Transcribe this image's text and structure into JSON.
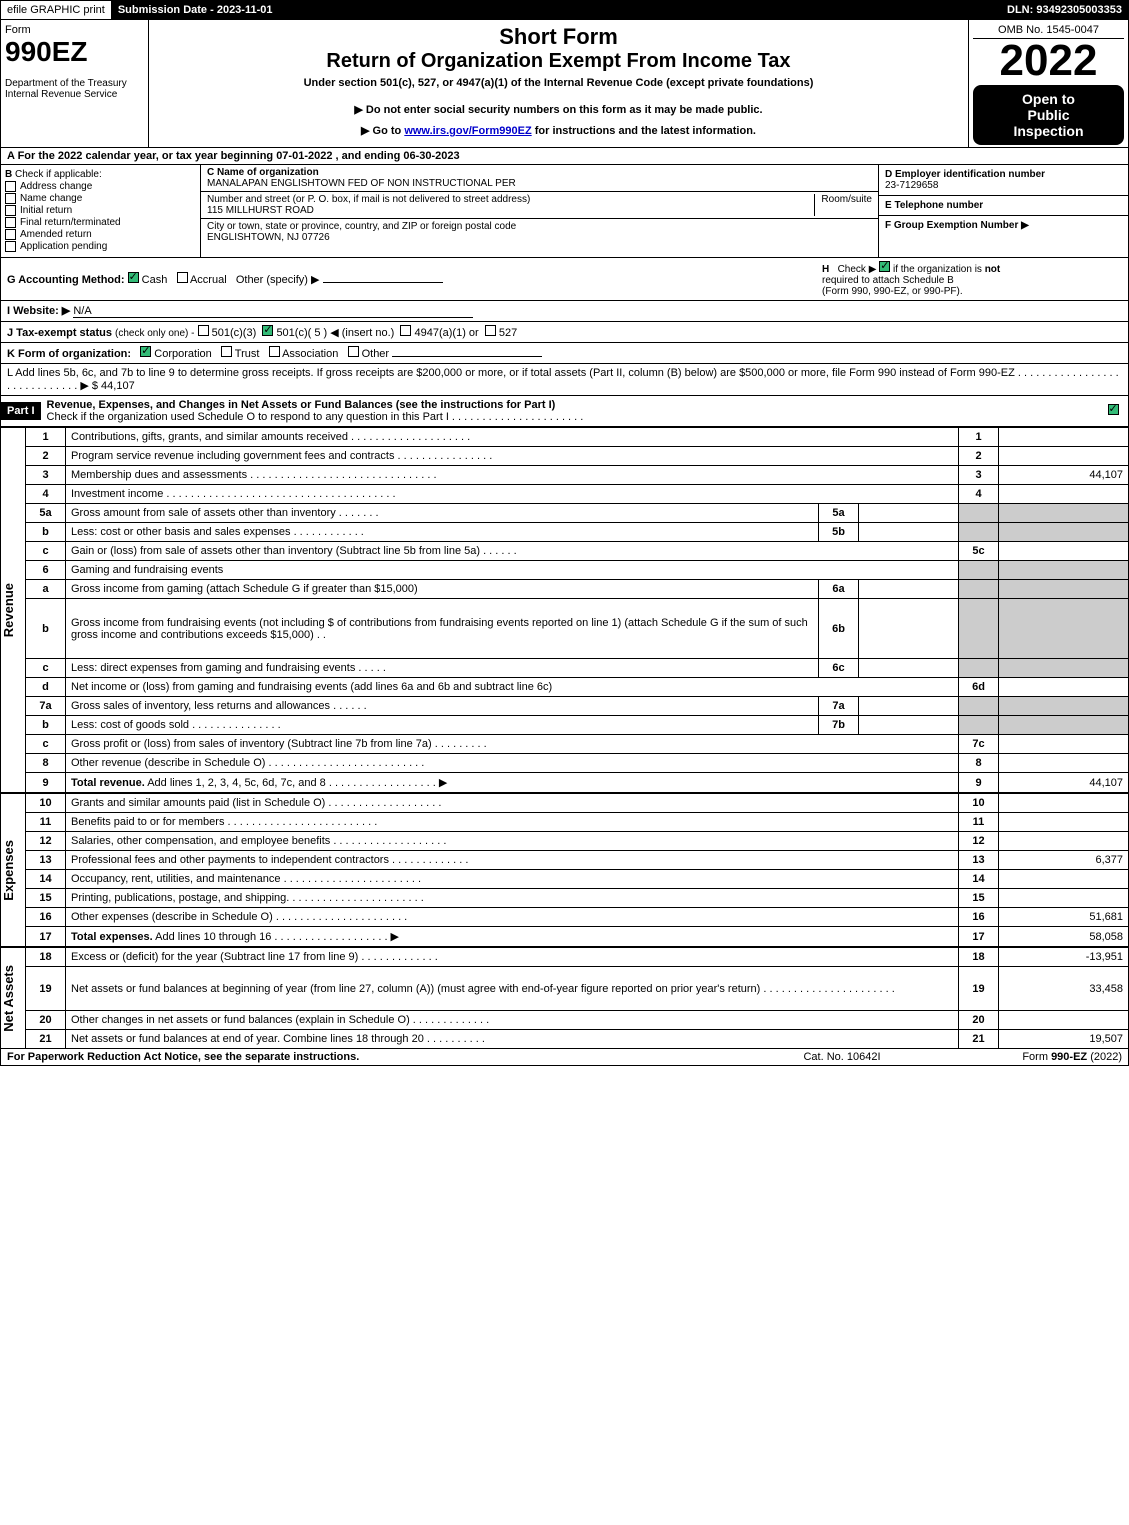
{
  "topbar": {
    "efile": "efile GRAPHIC print",
    "submission_label": "Submission Date - 2023-11-01",
    "dln": "DLN: 93492305003353"
  },
  "header": {
    "form_label": "Form",
    "form_no": "990EZ",
    "dept": "Department of the Treasury",
    "irs": "Internal Revenue Service",
    "short_form": "Short Form",
    "title": "Return of Organization Exempt From Income Tax",
    "subtitle": "Under section 501(c), 527, or 4947(a)(1) of the Internal Revenue Code (except private foundations)",
    "note1": "▶ Do not enter social security numbers on this form as it may be made public.",
    "note2_pre": "▶ Go to ",
    "note2_link": "www.irs.gov/Form990EZ",
    "note2_post": " for instructions and the latest information.",
    "omb": "OMB No. 1545-0047",
    "year": "2022",
    "inspection1": "Open to",
    "inspection2": "Public",
    "inspection3": "Inspection"
  },
  "rowA": "A  For the 2022 calendar year, or tax year beginning 07-01-2022 , and ending 06-30-2023",
  "colB": {
    "label": "B",
    "check_label": "Check if applicable:",
    "items": [
      "Address change",
      "Name change",
      "Initial return",
      "Final return/terminated",
      "Amended return",
      "Application pending"
    ]
  },
  "colC": {
    "name_label": "C Name of organization",
    "name": "MANALAPAN ENGLISHTOWN FED OF NON INSTRUCTIONAL PER",
    "addr_label": "Number and street (or P. O. box, if mail is not delivered to street address)",
    "room_label": "Room/suite",
    "addr": "115 MILLHURST ROAD",
    "city_label": "City or town, state or province, country, and ZIP or foreign postal code",
    "city": "ENGLISHTOWN, NJ  07726"
  },
  "colD": {
    "label": "D Employer identification number",
    "value": "23-7129658"
  },
  "colE": {
    "label": "E Telephone number",
    "value": ""
  },
  "colF": {
    "label": "F Group Exemption Number  ▶",
    "value": ""
  },
  "rowG": {
    "label": "G Accounting Method:",
    "opts": [
      "Cash",
      "Accrual",
      "Other (specify) ▶"
    ],
    "checked": 0
  },
  "rowH": {
    "label": "H",
    "text1": "Check ▶",
    "text2": "if the organization is ",
    "text2b": "not",
    "text3": "required to attach Schedule B",
    "text4": "(Form 990, 990-EZ, or 990-PF)."
  },
  "rowI": {
    "label": "I Website: ▶",
    "value": "N/A"
  },
  "rowJ": {
    "label": "J Tax-exempt status",
    "note": "(check only one) -",
    "opts": [
      "501(c)(3)",
      "501(c)( 5 ) ◀ (insert no.)",
      "4947(a)(1) or",
      "527"
    ],
    "checked": 1
  },
  "rowK": {
    "label": "K Form of organization:",
    "opts": [
      "Corporation",
      "Trust",
      "Association",
      "Other"
    ],
    "checked": 0
  },
  "rowL": {
    "text": "L Add lines 5b, 6c, and 7b to line 9 to determine gross receipts. If gross receipts are $200,000 or more, or if total assets (Part II, column (B) below) are $500,000 or more, file Form 990 instead of Form 990-EZ .  .  .  .  .  .  .  .  .  .  .  .  .  .  .  .  .  .  .  .  .  .  .  .  .  .  .  .  .  ▶ $ 44,107"
  },
  "part1": {
    "label": "Part I",
    "title": "Revenue, Expenses, and Changes in Net Assets or Fund Balances (see the instructions for Part I)",
    "check_text": "Check if the organization used Schedule O to respond to any question in this Part I .  .  .  .  .  .  .  .  .  .  .  .  .  .  .  .  .  .  .  .  .  ."
  },
  "sections": {
    "revenue_label": "Revenue",
    "expenses_label": "Expenses",
    "netassets_label": "Net Assets"
  },
  "lines": [
    {
      "n": "1",
      "desc": "Contributions, gifts, grants, and similar amounts received .  .  .  .  .  .  .  .  .  .  .  .  .  .  .  .  .  .  .  .",
      "ln": "1",
      "amt": ""
    },
    {
      "n": "2",
      "desc": "Program service revenue including government fees and contracts .  .  .  .  .  .  .  .  .  .  .  .  .  .  .  .",
      "ln": "2",
      "amt": ""
    },
    {
      "n": "3",
      "desc": "Membership dues and assessments .  .  .  .  .  .  .  .  .  .  .  .  .  .  .  .  .  .  .  .  .  .  .  .  .  .  .  .  .  .  .",
      "ln": "3",
      "amt": "44,107"
    },
    {
      "n": "4",
      "desc": "Investment income .  .  .  .  .  .  .  .  .  .  .  .  .  .  .  .  .  .  .  .  .  .  .  .  .  .  .  .  .  .  .  .  .  .  .  .  .  .",
      "ln": "4",
      "amt": ""
    },
    {
      "n": "5a",
      "desc": "Gross amount from sale of assets other than inventory .  .  .  .  .  .  .",
      "sub": "5a",
      "subval": "",
      "shaded": true
    },
    {
      "n": "b",
      "desc": "Less: cost or other basis and sales expenses .  .  .  .  .  .  .  .  .  .  .  .",
      "sub": "5b",
      "subval": "",
      "shaded": true
    },
    {
      "n": "c",
      "desc": "Gain or (loss) from sale of assets other than inventory (Subtract line 5b from line 5a) .  .  .  .  .  .",
      "ln": "5c",
      "amt": ""
    },
    {
      "n": "6",
      "desc": "Gaming and fundraising events",
      "shaded": true,
      "noboxes": true
    },
    {
      "n": "a",
      "desc": "Gross income from gaming (attach Schedule G if greater than $15,000)",
      "sub": "6a",
      "subval": "",
      "shaded": true
    },
    {
      "n": "b",
      "desc": "Gross income from fundraising events (not including $                       of contributions from fundraising events reported on line 1) (attach Schedule G if the sum of such gross income and contributions exceeds $15,000)    .  .",
      "sub": "6b",
      "subval": "",
      "shaded": true,
      "tall": true
    },
    {
      "n": "c",
      "desc": "Less: direct expenses from gaming and fundraising events  .  .  .  .  .",
      "sub": "6c",
      "subval": "",
      "shaded": true
    },
    {
      "n": "d",
      "desc": "Net income or (loss) from gaming and fundraising events (add lines 6a and 6b and subtract line 6c)",
      "ln": "6d",
      "amt": ""
    },
    {
      "n": "7a",
      "desc": "Gross sales of inventory, less returns and allowances .  .  .  .  .  .",
      "sub": "7a",
      "subval": "",
      "shaded": true
    },
    {
      "n": "b",
      "desc": "Less: cost of goods sold          .  .  .  .  .  .  .  .  .  .  .  .  .  .  .",
      "sub": "7b",
      "subval": "",
      "shaded": true
    },
    {
      "n": "c",
      "desc": "Gross profit or (loss) from sales of inventory (Subtract line 7b from line 7a) .  .  .  .  .  .  .  .  .",
      "ln": "7c",
      "amt": ""
    },
    {
      "n": "8",
      "desc": "Other revenue (describe in Schedule O) .  .  .  .  .  .  .  .  .  .  .  .  .  .  .  .  .  .  .  .  .  .  .  .  .  .",
      "ln": "8",
      "amt": ""
    },
    {
      "n": "9",
      "desc": "Total revenue. Add lines 1, 2, 3, 4, 5c, 6d, 7c, and 8  .  .  .  .  .  .  .  .  .  .  .  .  .  .  .  .  .  .  ▶",
      "ln": "9",
      "amt": "44,107",
      "bold": true
    }
  ],
  "explines": [
    {
      "n": "10",
      "desc": "Grants and similar amounts paid (list in Schedule O) .  .  .  .  .  .  .  .  .  .  .  .  .  .  .  .  .  .  .",
      "ln": "10",
      "amt": ""
    },
    {
      "n": "11",
      "desc": "Benefits paid to or for members       .  .  .  .  .  .  .  .  .  .  .  .  .  .  .  .  .  .  .  .  .  .  .  .  .",
      "ln": "11",
      "amt": ""
    },
    {
      "n": "12",
      "desc": "Salaries, other compensation, and employee benefits .  .  .  .  .  .  .  .  .  .  .  .  .  .  .  .  .  .  .",
      "ln": "12",
      "amt": ""
    },
    {
      "n": "13",
      "desc": "Professional fees and other payments to independent contractors .  .  .  .  .  .  .  .  .  .  .  .  .",
      "ln": "13",
      "amt": "6,377"
    },
    {
      "n": "14",
      "desc": "Occupancy, rent, utilities, and maintenance .  .  .  .  .  .  .  .  .  .  .  .  .  .  .  .  .  .  .  .  .  .  .",
      "ln": "14",
      "amt": ""
    },
    {
      "n": "15",
      "desc": "Printing, publications, postage, and shipping.  .  .  .  .  .  .  .  .  .  .  .  .  .  .  .  .  .  .  .  .  .  .",
      "ln": "15",
      "amt": ""
    },
    {
      "n": "16",
      "desc": "Other expenses (describe in Schedule O)     .  .  .  .  .  .  .  .  .  .  .  .  .  .  .  .  .  .  .  .  .  .",
      "ln": "16",
      "amt": "51,681"
    },
    {
      "n": "17",
      "desc": "Total expenses. Add lines 10 through 16       .  .  .  .  .  .  .  .  .  .  .  .  .  .  .  .  .  .  .   ▶",
      "ln": "17",
      "amt": "58,058",
      "bold": true
    }
  ],
  "netlines": [
    {
      "n": "18",
      "desc": "Excess or (deficit) for the year (Subtract line 17 from line 9)         .  .  .  .  .  .  .  .  .  .  .  .  .",
      "ln": "18",
      "amt": "-13,951"
    },
    {
      "n": "19",
      "desc": "Net assets or fund balances at beginning of year (from line 27, column (A)) (must agree with end-of-year figure reported on prior year's return) .  .  .  .  .  .  .  .  .  .  .  .  .  .  .  .  .  .  .  .  .  .",
      "ln": "19",
      "amt": "33,458",
      "tall": true
    },
    {
      "n": "20",
      "desc": "Other changes in net assets or fund balances (explain in Schedule O) .  .  .  .  .  .  .  .  .  .  .  .  .",
      "ln": "20",
      "amt": ""
    },
    {
      "n": "21",
      "desc": "Net assets or fund balances at end of year. Combine lines 18 through 20 .  .  .  .  .  .  .  .  .  .",
      "ln": "21",
      "amt": "19,507"
    }
  ],
  "footer": {
    "left": "For Paperwork Reduction Act Notice, see the separate instructions.",
    "mid": "Cat. No. 10642I",
    "right_pre": "Form ",
    "right_form": "990-EZ",
    "right_post": " (2022)"
  }
}
